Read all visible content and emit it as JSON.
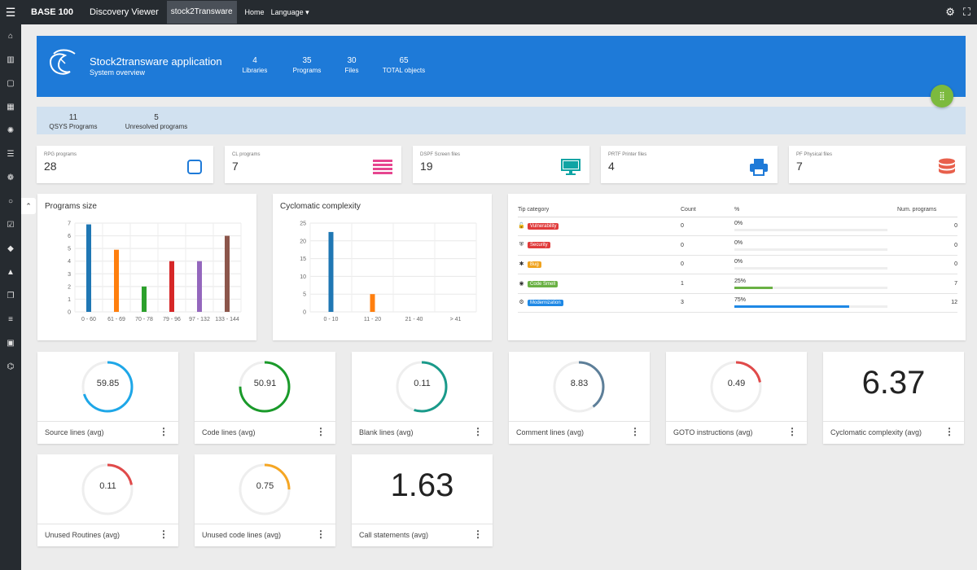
{
  "topbar": {
    "brand": "BASE 100",
    "nav": [
      "Discovery Viewer",
      "stock2Transware",
      "Home",
      "Language ▾"
    ]
  },
  "header": {
    "title": "Stock2transware application",
    "subtitle": "System overview",
    "stats": [
      {
        "value": "4",
        "label": "Libraries"
      },
      {
        "value": "35",
        "label": "Programs"
      },
      {
        "value": "30",
        "label": "Files"
      },
      {
        "value": "65",
        "label": "TOTAL objects"
      }
    ]
  },
  "subbar": {
    "stats": [
      {
        "value": "11",
        "label": "QSYS Programs"
      },
      {
        "value": "5",
        "label": "Unresolved programs"
      }
    ]
  },
  "file_cards": [
    {
      "label": "RPG programs",
      "value": "28",
      "icon": "square-outline-icon",
      "color": "#1e7ad8"
    },
    {
      "label": "CL programs",
      "value": "7",
      "icon": "list-lines-icon",
      "color": "#e6458f"
    },
    {
      "label": "DSPF Screen files",
      "value": "19",
      "icon": "monitor-icon",
      "color": "#0fa4a4"
    },
    {
      "label": "PRTF Printer files",
      "value": "4",
      "icon": "printer-icon",
      "color": "#1e7ad8"
    },
    {
      "label": "PF Physical files",
      "value": "7",
      "icon": "database-icon",
      "color": "#e8604c"
    }
  ],
  "charts": {
    "programs_size": {
      "title": "Programs size"
    },
    "cyclomatic": {
      "title": "Cyclomatic complexity"
    }
  },
  "chart_data": [
    {
      "type": "bar",
      "title": "Programs size",
      "categories": [
        "0 - 60",
        "61 - 69",
        "70 - 78",
        "79 - 96",
        "97 - 132",
        "133 - 144"
      ],
      "values": [
        6.9,
        4.9,
        2,
        4,
        4,
        6
      ],
      "colors": [
        "#1f77b4",
        "#ff7f0e",
        "#2ca02c",
        "#d62728",
        "#9467bd",
        "#8c564b"
      ],
      "yticks": [
        0,
        1,
        2,
        3,
        4,
        5,
        6,
        7
      ],
      "ylim": [
        0,
        7
      ],
      "grid": true
    },
    {
      "type": "bar",
      "title": "Cyclomatic complexity",
      "categories": [
        "0 - 10",
        "11 - 20",
        "21 - 40",
        "> 41"
      ],
      "values": [
        22.5,
        5,
        0,
        0
      ],
      "colors": [
        "#1f77b4",
        "#ff7f0e",
        "#2ca02c",
        "#d62728"
      ],
      "yticks": [
        0,
        5,
        10,
        15,
        20,
        25
      ],
      "ylim": [
        0,
        25
      ],
      "grid": true
    }
  ],
  "tips": {
    "headers": [
      "Tip category",
      "Count",
      "%",
      "Num. programs"
    ],
    "rows": [
      {
        "icon": "🔓",
        "icon_name": "unlock-icon",
        "label": "Vulnerability",
        "color": "#e03b3b",
        "count": "0",
        "pct": "0%",
        "pct_value": 0,
        "bar_color": "#ccc",
        "programs": "0"
      },
      {
        "icon": "⛨",
        "icon_name": "shield-icon",
        "label": "Security",
        "color": "#e03b3b",
        "count": "0",
        "pct": "0%",
        "pct_value": 0,
        "bar_color": "#ccc",
        "programs": "0"
      },
      {
        "icon": "✱",
        "icon_name": "bug-icon",
        "label": "Bug",
        "color": "#f0a31e",
        "count": "0",
        "pct": "0%",
        "pct_value": 0,
        "bar_color": "#ccc",
        "programs": "0"
      },
      {
        "icon": "◉",
        "icon_name": "eye-icon",
        "label": "Code Smell",
        "color": "#6ab144",
        "count": "1",
        "pct": "25%",
        "pct_value": 25,
        "bar_color": "#6ab144",
        "programs": "7"
      },
      {
        "icon": "⚙",
        "icon_name": "gear-icon",
        "label": "Modernization",
        "color": "#1e88e5",
        "count": "3",
        "pct": "75%",
        "pct_value": 75,
        "bar_color": "#1e88e5",
        "programs": "12"
      }
    ]
  },
  "metrics": [
    {
      "label": "Source lines (avg)",
      "value": "59.85",
      "fraction": 0.7,
      "color": "#1ea7e8",
      "kind": "gauge"
    },
    {
      "label": "Code lines (avg)",
      "value": "50.91",
      "fraction": 0.75,
      "color": "#1a9a2a",
      "kind": "gauge"
    },
    {
      "label": "Blank lines (avg)",
      "value": "0.11",
      "fraction": 0.55,
      "color": "#1a9a8a",
      "kind": "gauge"
    },
    {
      "label": "Comment lines (avg)",
      "value": "8.83",
      "fraction": 0.4,
      "color": "#5d7f99",
      "kind": "gauge"
    },
    {
      "label": "GOTO instructions (avg)",
      "value": "0.49",
      "fraction": 0.22,
      "color": "#e04a4a",
      "kind": "gauge"
    },
    {
      "label": "Cyclomatic complexity (avg)",
      "value": "6.37",
      "kind": "number"
    },
    {
      "label": "Unused Routines (avg)",
      "value": "0.11",
      "fraction": 0.22,
      "color": "#e04a4a",
      "kind": "gauge"
    },
    {
      "label": "Unused code lines (avg)",
      "value": "0.75",
      "fraction": 0.25,
      "color": "#f5a623",
      "kind": "gauge"
    },
    {
      "label": "Call statements (avg)",
      "value": "1.63",
      "kind": "number"
    }
  ],
  "sidebar_icons": [
    "home-icon",
    "chart-icon",
    "square-icon",
    "table-icon",
    "network-icon",
    "list-icon",
    "users-icon",
    "circle-icon",
    "calendar-check-icon",
    "tag-icon",
    "warning-icon",
    "copy-icon",
    "sliders-icon",
    "id-card-icon",
    "lock-icon"
  ]
}
